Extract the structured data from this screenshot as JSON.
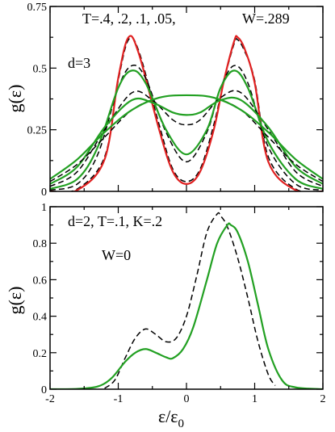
{
  "chart_data": [
    {
      "type": "line",
      "title": "",
      "annotations": [
        "T=.4, .2, .1, .05,",
        "W=.289",
        "d=3"
      ],
      "ylabel": "g(ε)",
      "xlabel": "",
      "xlim": [
        -2,
        2
      ],
      "ylim": [
        0,
        0.75
      ],
      "yticks": [
        "0",
        "0.25",
        "0.5",
        "0.75"
      ],
      "grid": false,
      "legend": "none",
      "colors": {
        "green": "#22a022",
        "red": "#e02020",
        "black": "#000000"
      },
      "series": [
        {
          "style": "dashed",
          "color": "black",
          "x": [
            -2,
            -1.6,
            -1.2,
            -1.0,
            -0.85,
            -0.7,
            -0.4,
            -0.2,
            0,
            0.2,
            0.4,
            0.55,
            0.7,
            0.75,
            0.85,
            1.0,
            1.2,
            1.6,
            2
          ],
          "y": [
            0,
            0.01,
            0.14,
            0.45,
            0.615,
            0.57,
            0.27,
            0.09,
            0.04,
            0.09,
            0.27,
            0.45,
            0.6,
            0.615,
            0.57,
            0.45,
            0.14,
            0.01,
            0
          ]
        },
        {
          "style": "solid",
          "color": "red",
          "x": [
            -2,
            -1.6,
            -1.2,
            -1.0,
            -0.85,
            -0.7,
            -0.4,
            -0.2,
            0,
            0.2,
            0.4,
            0.55,
            0.7,
            0.75,
            0.85,
            1.0,
            1.2,
            1.6,
            2
          ],
          "y": [
            0,
            0.005,
            0.13,
            0.46,
            0.625,
            0.56,
            0.25,
            0.08,
            0.03,
            0.08,
            0.25,
            0.45,
            0.61,
            0.625,
            0.58,
            0.44,
            0.12,
            0.005,
            0
          ]
        },
        {
          "style": "dashed",
          "color": "black",
          "x": [
            -2,
            -1.6,
            -1.3,
            -1.0,
            -0.8,
            -0.6,
            -0.3,
            0,
            0.3,
            0.5,
            0.7,
            0.9,
            1.2,
            1.6,
            2
          ],
          "y": [
            0.005,
            0.03,
            0.15,
            0.42,
            0.51,
            0.46,
            0.24,
            0.12,
            0.24,
            0.42,
            0.51,
            0.44,
            0.18,
            0.03,
            0.005
          ]
        },
        {
          "style": "solid",
          "color": "green",
          "x": [
            -2,
            -1.6,
            -1.3,
            -1.0,
            -0.8,
            -0.6,
            -0.3,
            0,
            0.3,
            0.5,
            0.7,
            0.9,
            1.2,
            1.6,
            2
          ],
          "y": [
            0.01,
            0.05,
            0.18,
            0.42,
            0.49,
            0.44,
            0.25,
            0.15,
            0.25,
            0.42,
            0.49,
            0.42,
            0.2,
            0.05,
            0.01
          ]
        },
        {
          "style": "dashed",
          "color": "black",
          "x": [
            -2,
            -1.6,
            -1.2,
            -0.8,
            -0.5,
            -0.2,
            0,
            0.2,
            0.5,
            0.8,
            1.2,
            1.6,
            2
          ],
          "y": [
            0.02,
            0.08,
            0.25,
            0.4,
            0.37,
            0.29,
            0.27,
            0.29,
            0.38,
            0.4,
            0.25,
            0.08,
            0.02
          ]
        },
        {
          "style": "solid",
          "color": "green",
          "x": [
            -2,
            -1.6,
            -1.2,
            -0.8,
            -0.5,
            -0.2,
            0,
            0.2,
            0.5,
            0.8,
            1.2,
            1.6,
            2
          ],
          "y": [
            0.03,
            0.1,
            0.26,
            0.37,
            0.36,
            0.32,
            0.31,
            0.32,
            0.37,
            0.37,
            0.26,
            0.1,
            0.03
          ]
        },
        {
          "style": "dashed",
          "color": "black",
          "x": [
            -2,
            -1.6,
            -1.2,
            -0.8,
            -0.4,
            0,
            0.4,
            0.8,
            1.2,
            1.6,
            2
          ],
          "y": [
            0.04,
            0.11,
            0.22,
            0.33,
            0.38,
            0.39,
            0.38,
            0.33,
            0.22,
            0.11,
            0.04
          ]
        },
        {
          "style": "solid",
          "color": "green",
          "x": [
            -2,
            -1.6,
            -1.2,
            -0.8,
            -0.4,
            0,
            0.4,
            0.8,
            1.2,
            1.6,
            2
          ],
          "y": [
            0.05,
            0.13,
            0.24,
            0.33,
            0.38,
            0.39,
            0.38,
            0.33,
            0.24,
            0.13,
            0.05
          ]
        }
      ]
    },
    {
      "type": "line",
      "title": "",
      "annotations": [
        "d=2,  T=.1, K=.2",
        "W=0"
      ],
      "ylabel": "g(ε)",
      "xlabel": "ε/ε",
      "xlabel_subscript": "0",
      "xlim": [
        -2,
        2
      ],
      "ylim": [
        0,
        1
      ],
      "xticks": [
        "-2",
        "-1",
        "0",
        "1",
        "2"
      ],
      "yticks": [
        "0",
        "0.2",
        "0.4",
        "0.6",
        "0.8",
        "1"
      ],
      "grid": false,
      "legend": "none",
      "series": [
        {
          "style": "dashed",
          "color": "black",
          "x": [
            -1.2,
            -1.05,
            -0.9,
            -0.75,
            -0.6,
            -0.45,
            -0.3,
            -0.15,
            0,
            0.15,
            0.3,
            0.45,
            0.5,
            0.6,
            0.75,
            0.9,
            1.05,
            1.2,
            1.3
          ],
          "y": [
            0.005,
            0.05,
            0.17,
            0.28,
            0.33,
            0.3,
            0.26,
            0.28,
            0.4,
            0.62,
            0.86,
            0.96,
            0.95,
            0.89,
            0.72,
            0.5,
            0.26,
            0.08,
            0.02
          ]
        },
        {
          "style": "solid",
          "color": "green",
          "x": [
            -2,
            -1.6,
            -1.3,
            -1.1,
            -0.9,
            -0.75,
            -0.6,
            -0.45,
            -0.3,
            -0.2,
            -0.05,
            0.1,
            0.3,
            0.45,
            0.6,
            0.65,
            0.75,
            0.9,
            1.05,
            1.2,
            1.4,
            1.6,
            2
          ],
          "y": [
            0,
            0.002,
            0.015,
            0.06,
            0.15,
            0.2,
            0.22,
            0.2,
            0.175,
            0.17,
            0.22,
            0.34,
            0.6,
            0.8,
            0.9,
            0.9,
            0.86,
            0.7,
            0.46,
            0.22,
            0.05,
            0.01,
            0
          ]
        }
      ]
    }
  ]
}
